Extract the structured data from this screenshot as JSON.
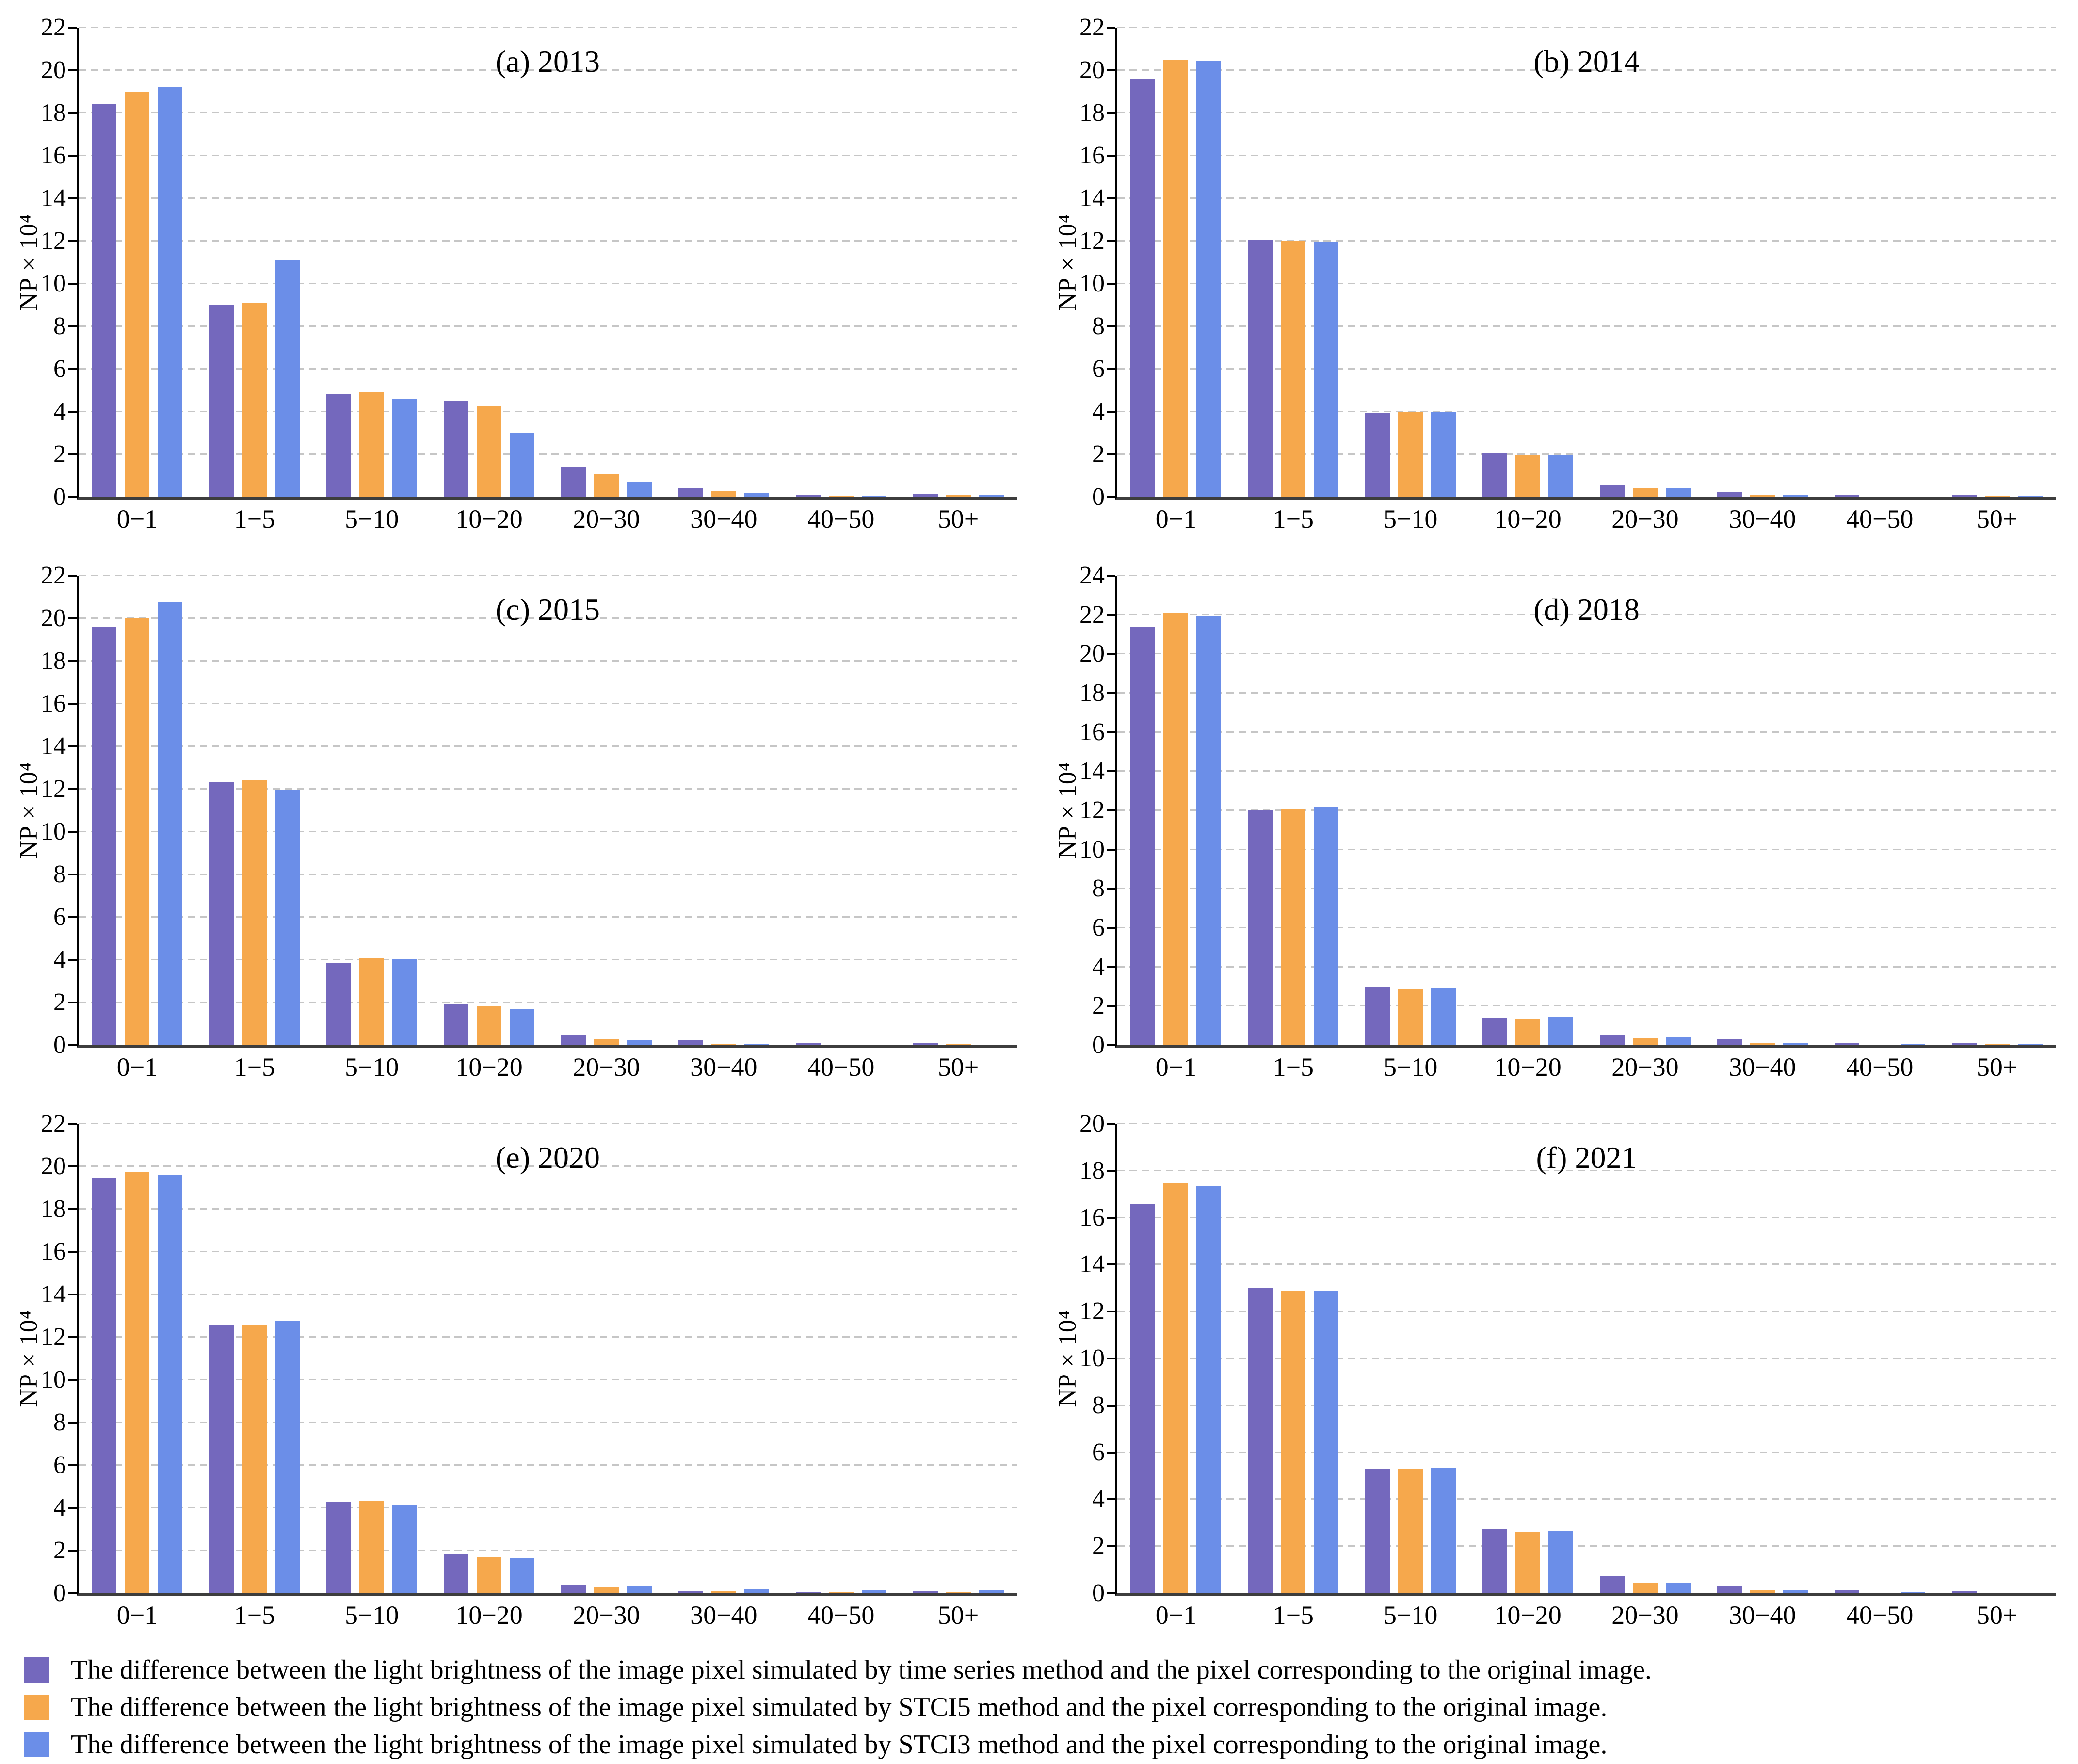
{
  "figure": {
    "ylabel": "NP×10⁴",
    "grid": "dashed-horizontal",
    "axis_color": "#000000",
    "x_axis_color": "#3d3d3d",
    "gridline_color": "#c6c6c6"
  },
  "legend": {
    "position": "bottom-left",
    "items": [
      {
        "series": "time series method",
        "color": "#7468bd",
        "label": "The difference between the light brightness of the image pixel simulated by time series method and the pixel corresponding to the original image."
      },
      {
        "series": "STCI5 method",
        "color": "#f6a84c",
        "label": "The difference between the light brightness of the image pixel simulated by STCI5 method and the pixel corresponding to the original image."
      },
      {
        "series": "STCI3 method",
        "color": "#6b8ee8",
        "label": "The difference between the light brightness of the image pixel simulated by STCI3 method and the pixel corresponding to the original image."
      }
    ]
  },
  "chart_data": [
    {
      "type": "bar",
      "title": "(a) 2013",
      "ylabel": "NP×10⁴",
      "xlabel": "",
      "ylim": [
        0,
        22
      ],
      "ytick_step": 2,
      "categories": [
        "0−1",
        "1−5",
        "5−10",
        "10−20",
        "20−30",
        "30−40",
        "40−50",
        "50+"
      ],
      "series": [
        {
          "name": "time series method",
          "values": [
            18.4,
            9.0,
            4.85,
            4.5,
            1.4,
            0.4,
            0.1,
            0.15
          ]
        },
        {
          "name": "STCI5 method",
          "values": [
            19.0,
            9.1,
            4.9,
            4.25,
            1.1,
            0.3,
            0.07,
            0.1
          ]
        },
        {
          "name": "STCI3 method",
          "values": [
            19.2,
            11.1,
            4.6,
            3.0,
            0.7,
            0.2,
            0.05,
            0.08
          ]
        }
      ]
    },
    {
      "type": "bar",
      "title": "(b) 2014",
      "ylabel": "NP×10⁴",
      "xlabel": "",
      "ylim": [
        0,
        22
      ],
      "ytick_step": 2,
      "categories": [
        "0−1",
        "1−5",
        "5−10",
        "10−20",
        "20−30",
        "30−40",
        "40−50",
        "50+"
      ],
      "series": [
        {
          "name": "time series method",
          "values": [
            19.6,
            12.05,
            3.95,
            2.05,
            0.6,
            0.25,
            0.08,
            0.08
          ]
        },
        {
          "name": "STCI5 method",
          "values": [
            20.5,
            12.0,
            4.0,
            1.95,
            0.4,
            0.08,
            0.03,
            0.05
          ]
        },
        {
          "name": "STCI3 method",
          "values": [
            20.45,
            11.95,
            4.0,
            1.95,
            0.4,
            0.08,
            0.03,
            0.04
          ]
        }
      ]
    },
    {
      "type": "bar",
      "title": "(c) 2015",
      "ylabel": "NP×10⁴",
      "xlabel": "",
      "ylim": [
        0,
        22
      ],
      "ytick_step": 2,
      "categories": [
        "0−1",
        "1−5",
        "5−10",
        "10−20",
        "20−30",
        "30−40",
        "40−50",
        "50+"
      ],
      "series": [
        {
          "name": "time series method",
          "values": [
            19.6,
            12.35,
            3.85,
            1.9,
            0.5,
            0.25,
            0.1,
            0.1
          ]
        },
        {
          "name": "STCI5 method",
          "values": [
            20.0,
            12.4,
            4.1,
            1.85,
            0.3,
            0.06,
            0.03,
            0.05
          ]
        },
        {
          "name": "STCI3 method",
          "values": [
            20.75,
            11.95,
            4.05,
            1.7,
            0.25,
            0.06,
            0.02,
            0.03
          ]
        }
      ]
    },
    {
      "type": "bar",
      "title": "(d) 2018",
      "ylabel": "NP×10⁴",
      "xlabel": "",
      "ylim": [
        0,
        24
      ],
      "ytick_step": 2,
      "categories": [
        "0−1",
        "1−5",
        "5−10",
        "10−20",
        "20−30",
        "30−40",
        "40−50",
        "50+"
      ],
      "series": [
        {
          "name": "time series method",
          "values": [
            21.4,
            12.0,
            2.95,
            1.4,
            0.55,
            0.32,
            0.12,
            0.1
          ]
        },
        {
          "name": "STCI5 method",
          "values": [
            22.1,
            12.05,
            2.85,
            1.35,
            0.38,
            0.12,
            0.03,
            0.05
          ]
        },
        {
          "name": "STCI3 method",
          "values": [
            21.95,
            12.2,
            2.9,
            1.45,
            0.4,
            0.12,
            0.04,
            0.04
          ]
        }
      ]
    },
    {
      "type": "bar",
      "title": "(e) 2020",
      "ylabel": "NP×10⁴",
      "xlabel": "",
      "ylim": [
        0,
        22
      ],
      "ytick_step": 2,
      "categories": [
        "0−1",
        "1−5",
        "5−10",
        "10−20",
        "20−30",
        "30−40",
        "40−50",
        "50+"
      ],
      "series": [
        {
          "name": "time series method",
          "values": [
            19.45,
            12.6,
            4.3,
            1.85,
            0.38,
            0.1,
            0.05,
            0.08
          ]
        },
        {
          "name": "STCI5 method",
          "values": [
            19.75,
            12.6,
            4.35,
            1.7,
            0.3,
            0.1,
            0.04,
            0.05
          ]
        },
        {
          "name": "STCI3 method",
          "values": [
            19.6,
            12.75,
            4.15,
            1.65,
            0.35,
            0.2,
            0.15,
            0.15
          ]
        }
      ]
    },
    {
      "type": "bar",
      "title": "(f) 2021",
      "ylabel": "NP×10⁴",
      "xlabel": "",
      "ylim": [
        0,
        20
      ],
      "ytick_step": 2,
      "categories": [
        "0−1",
        "1−5",
        "5−10",
        "10−20",
        "20−30",
        "30−40",
        "40−50",
        "50+"
      ],
      "series": [
        {
          "name": "time series method",
          "values": [
            16.6,
            13.0,
            5.3,
            2.75,
            0.75,
            0.3,
            0.12,
            0.08
          ]
        },
        {
          "name": "STCI5 method",
          "values": [
            17.45,
            12.9,
            5.3,
            2.6,
            0.45,
            0.15,
            0.03,
            0.03
          ]
        },
        {
          "name": "STCI3 method",
          "values": [
            17.35,
            12.9,
            5.35,
            2.65,
            0.45,
            0.15,
            0.04,
            0.03
          ]
        }
      ]
    }
  ]
}
